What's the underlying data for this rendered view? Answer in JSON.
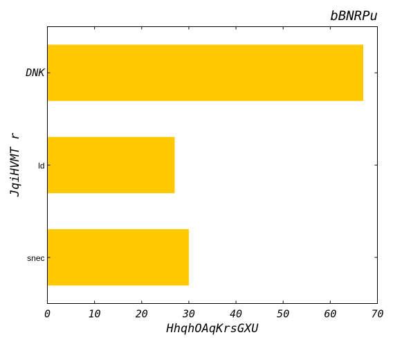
{
  "chart_data": {
    "type": "bar",
    "orientation": "horizontal",
    "title": "bBNRPu",
    "xlabel": "HhqhOAqKrsGXU",
    "ylabel": "JqiHVMT r",
    "categories": [
      "DNK",
      "ld",
      "snec"
    ],
    "values": [
      67,
      27,
      30
    ],
    "xlim": [
      0,
      70
    ],
    "xticks": [
      "0",
      "10",
      "20",
      "30",
      "40",
      "50",
      "60",
      "70"
    ],
    "bar_color": "#ffc800",
    "grid": false,
    "legend": "none"
  }
}
